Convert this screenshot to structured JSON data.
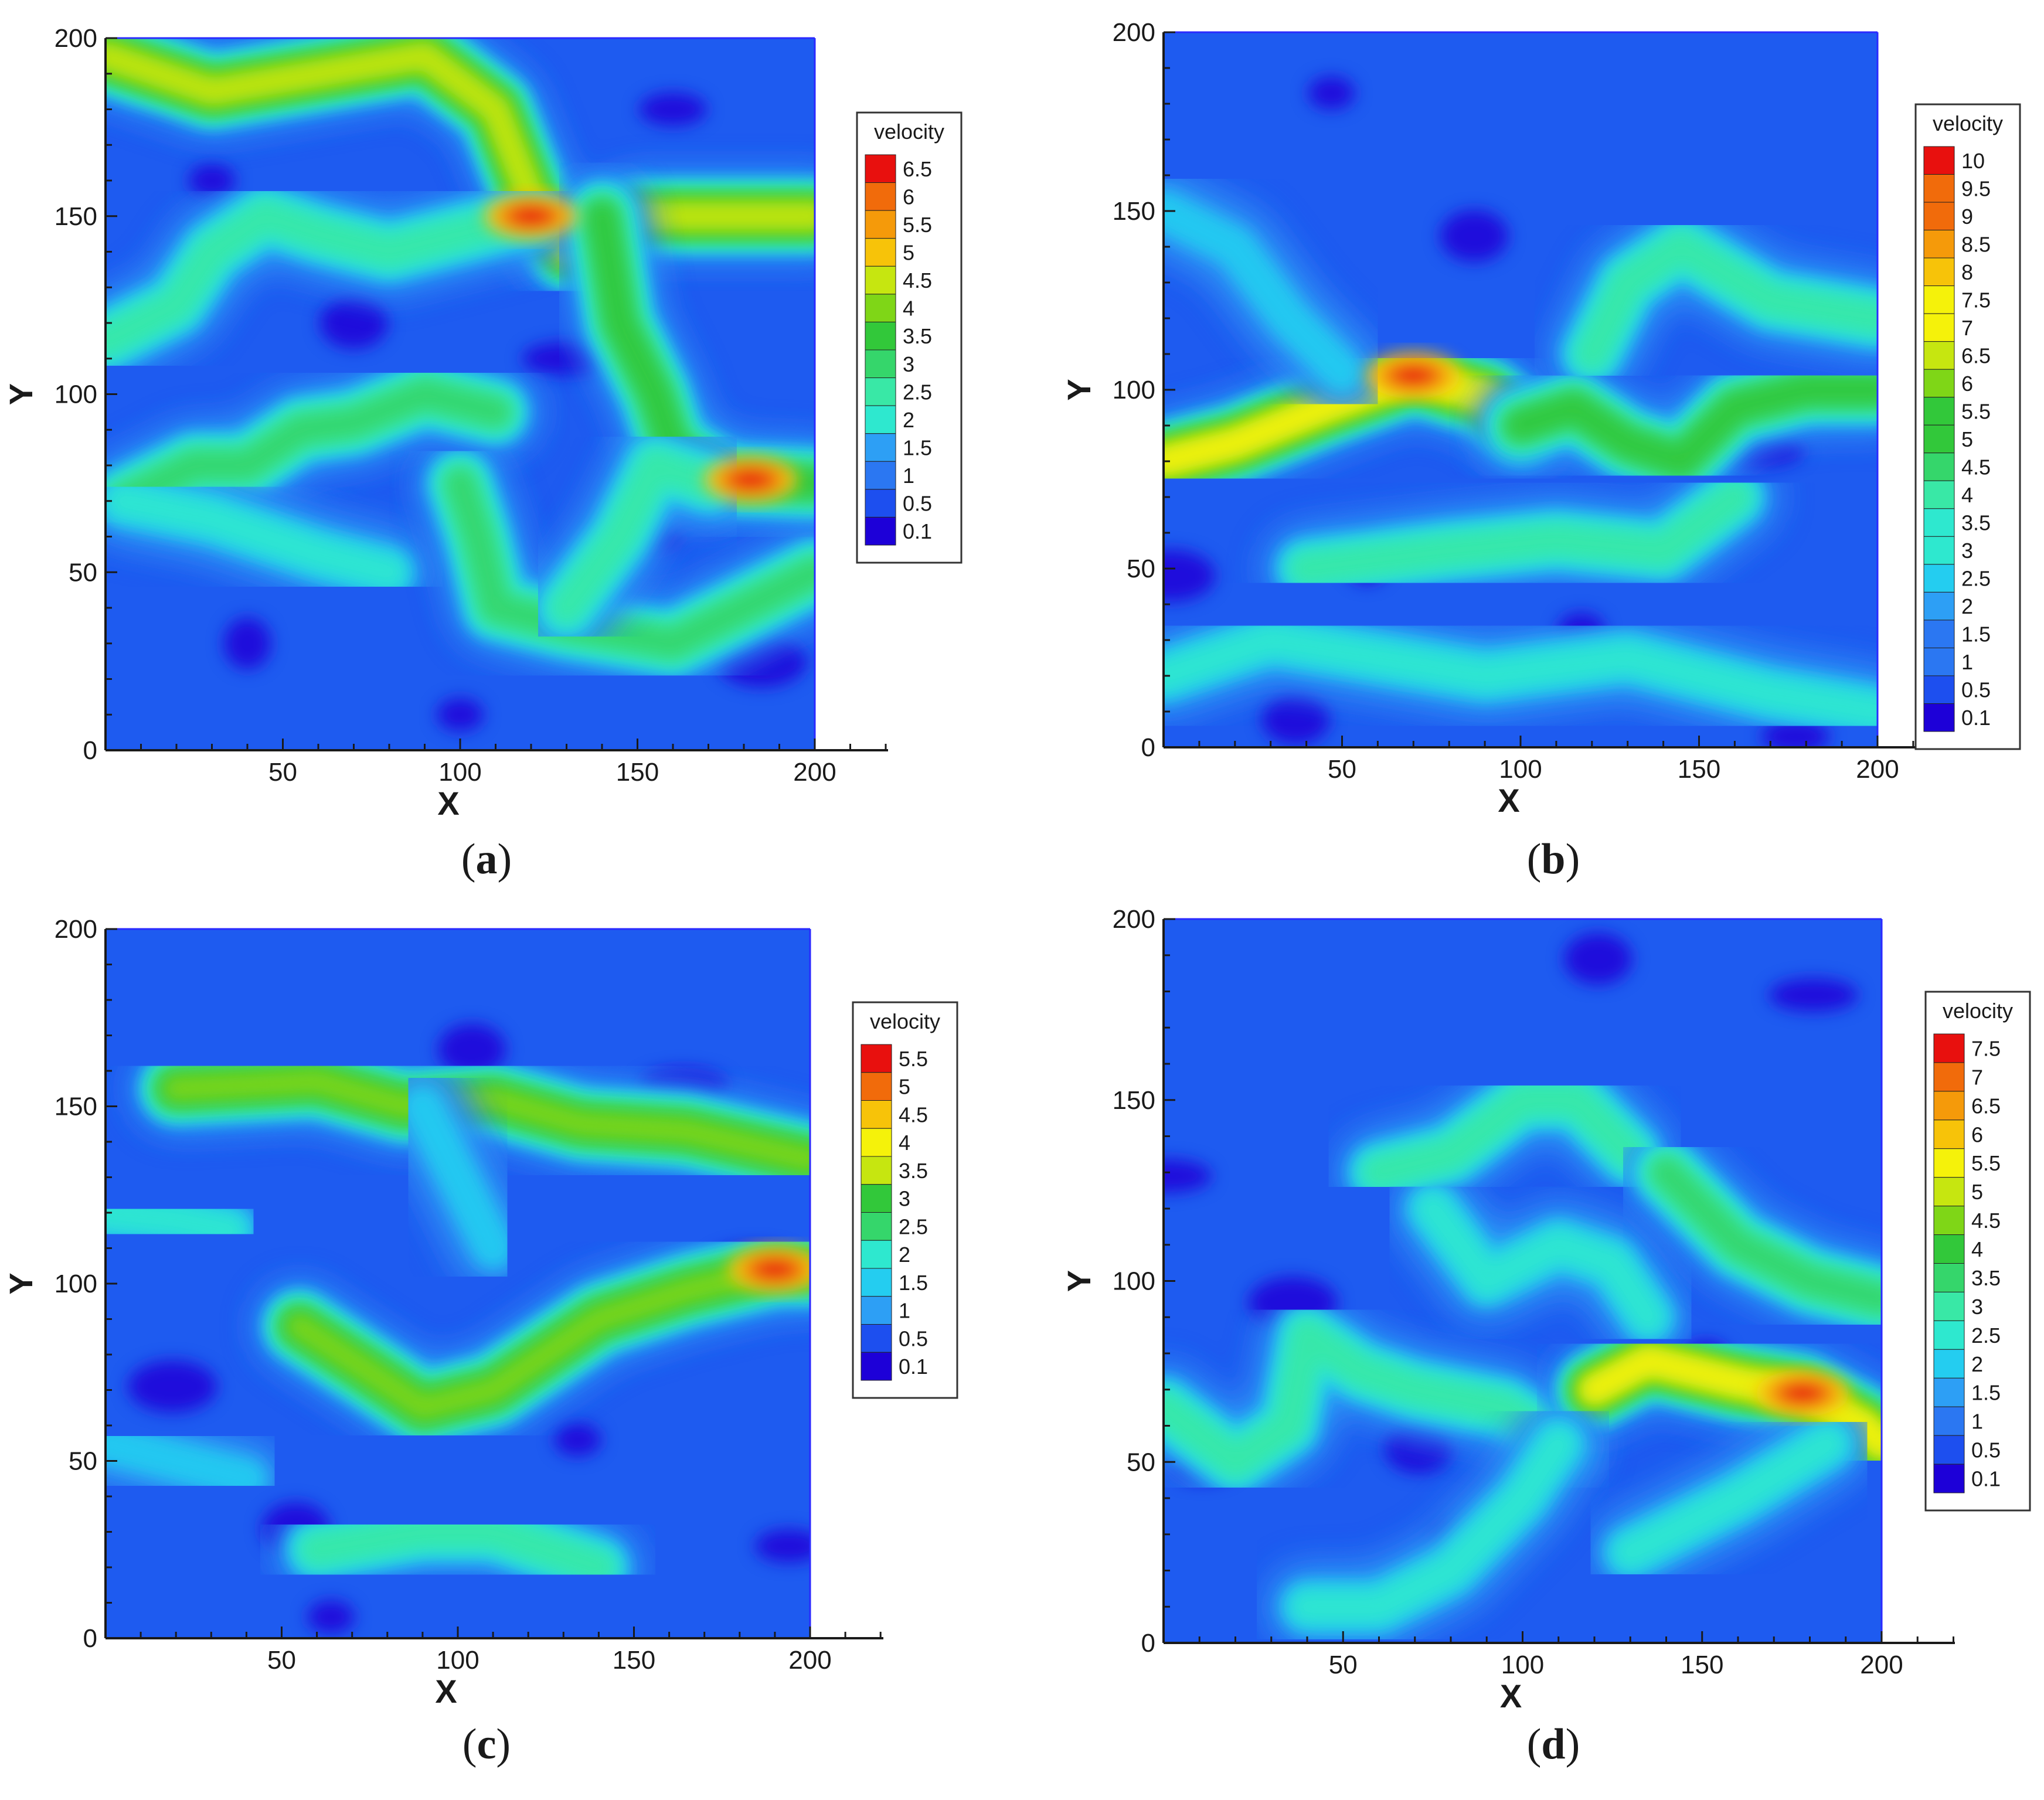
{
  "chart_data": [
    {
      "type": "heatmap",
      "panel": "a",
      "caption_letter": "a",
      "xlabel": "X",
      "ylabel": "Y",
      "xlim": [
        0,
        200
      ],
      "ylim": [
        0,
        200
      ],
      "x_ticks": [
        "50",
        "100",
        "150",
        "200"
      ],
      "y_ticks": [
        "0",
        "50",
        "100",
        "150",
        "200"
      ],
      "legend_title": "velocity",
      "levels": [
        "6.5",
        "6",
        "5.5",
        "5",
        "4.5",
        "4",
        "3.5",
        "3",
        "2.5",
        "2",
        "1.5",
        "1",
        "0.5",
        "0.1"
      ],
      "hotspot": {
        "x": 120,
        "y": 150,
        "value": 6.5
      },
      "secondary_hotspot": {
        "x": 182,
        "y": 76,
        "value": 6.0
      }
    },
    {
      "type": "heatmap",
      "panel": "b",
      "caption_letter": "b",
      "xlabel": "X",
      "ylabel": "Y",
      "xlim": [
        0,
        200
      ],
      "ylim": [
        0,
        200
      ],
      "x_ticks": [
        "50",
        "100",
        "150",
        "200"
      ],
      "y_ticks": [
        "0",
        "50",
        "100",
        "150",
        "200"
      ],
      "legend_title": "velocity",
      "levels": [
        "10",
        "9.5",
        "9",
        "8.5",
        "8",
        "7.5",
        "7",
        "6.5",
        "6",
        "5.5",
        "5",
        "4.5",
        "4",
        "3.5",
        "3",
        "2.5",
        "2",
        "1.5",
        "1",
        "0.5",
        "0.1"
      ],
      "hotspot": {
        "x": 70,
        "y": 104,
        "value": 10
      }
    },
    {
      "type": "heatmap",
      "panel": "c",
      "caption_letter": "c",
      "xlabel": "X",
      "ylabel": "Y",
      "xlim": [
        0,
        200
      ],
      "ylim": [
        0,
        200
      ],
      "x_ticks": [
        "50",
        "100",
        "150",
        "200"
      ],
      "y_ticks": [
        "0",
        "50",
        "100",
        "150",
        "200"
      ],
      "legend_title": "velocity",
      "levels": [
        "5.5",
        "5",
        "4.5",
        "4",
        "3.5",
        "3",
        "2.5",
        "2",
        "1.5",
        "1",
        "0.5",
        "0.1"
      ],
      "hotspot": {
        "x": 190,
        "y": 104,
        "value": 5.5
      }
    },
    {
      "type": "heatmap",
      "panel": "d",
      "caption_letter": "d",
      "xlabel": "X",
      "ylabel": "Y",
      "xlim": [
        0,
        200
      ],
      "ylim": [
        0,
        200
      ],
      "x_ticks": [
        "50",
        "100",
        "150",
        "200"
      ],
      "y_ticks": [
        "0",
        "50",
        "100",
        "150",
        "200"
      ],
      "legend_title": "velocity",
      "levels": [
        "7.5",
        "7",
        "6.5",
        "6",
        "5.5",
        "5",
        "4.5",
        "4",
        "3.5",
        "3",
        "2.5",
        "2",
        "1.5",
        "1",
        "0.5",
        "0.1"
      ],
      "hotspot": {
        "x": 178,
        "y": 69,
        "value": 7.5
      }
    }
  ],
  "colors": {
    "colormap": [
      "#1d00d8",
      "#1d4fef",
      "#2b77f2",
      "#2d9ff5",
      "#24cdf0",
      "#2ee8cf",
      "#39e8a6",
      "#35d66b",
      "#32c83a",
      "#7fd617",
      "#c6e610",
      "#f5f20a",
      "#f7c309",
      "#f59a0a",
      "#f16b0b",
      "#e8100e"
    ],
    "background_field": "#1e5bf0",
    "stream_low": "#2ad5ea",
    "stream_mid": "#3ddc7d",
    "axis": "#1a1a1a"
  }
}
